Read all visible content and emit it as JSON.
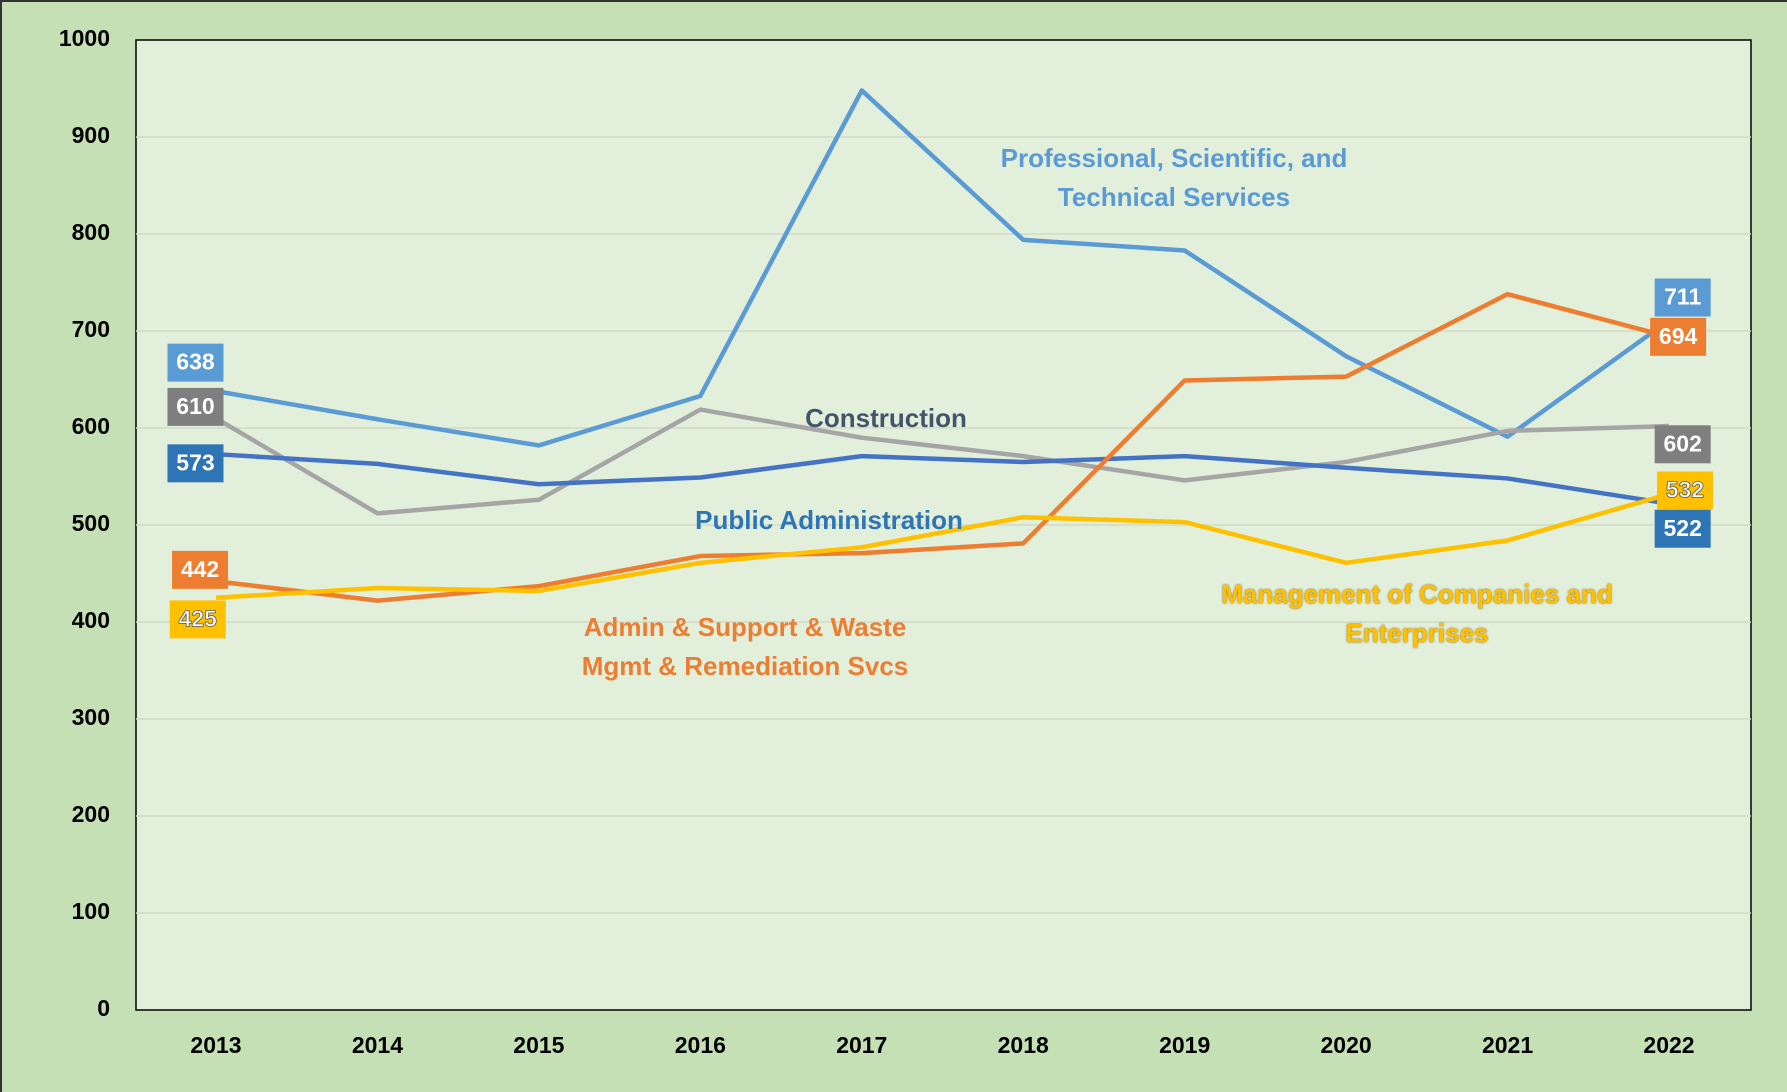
{
  "chart_data": {
    "type": "line",
    "categories": [
      "2013",
      "2014",
      "2015",
      "2016",
      "2017",
      "2018",
      "2019",
      "2020",
      "2021",
      "2022"
    ],
    "series": [
      {
        "name": "Professional, Scientific, and Technical Services",
        "color": "#5b9bd5",
        "values": [
          638,
          609,
          582,
          633,
          948,
          794,
          783,
          674,
          591,
          711
        ]
      },
      {
        "name": "Construction",
        "color": "#a5a5a5",
        "values": [
          610,
          512,
          526,
          619,
          590,
          571,
          546,
          565,
          597,
          602
        ]
      },
      {
        "name": "Public Administration",
        "color": "#4472c4",
        "values": [
          573,
          563,
          542,
          549,
          571,
          565,
          571,
          559,
          548,
          522
        ]
      },
      {
        "name": "Admin & Support & Waste Mgmt & Remediation Svcs",
        "color": "#ed7d31",
        "values": [
          442,
          422,
          437,
          468,
          471,
          481,
          649,
          653,
          738,
          694
        ]
      },
      {
        "name": "Management of Companies and Enterprises",
        "color": "#ffc000",
        "values": [
          425,
          435,
          432,
          461,
          477,
          508,
          503,
          461,
          484,
          532
        ]
      }
    ],
    "ylim": [
      0,
      1000
    ],
    "yticks": [
      0,
      100,
      200,
      300,
      400,
      500,
      600,
      700,
      800,
      900,
      1000
    ],
    "grid": true
  }
}
